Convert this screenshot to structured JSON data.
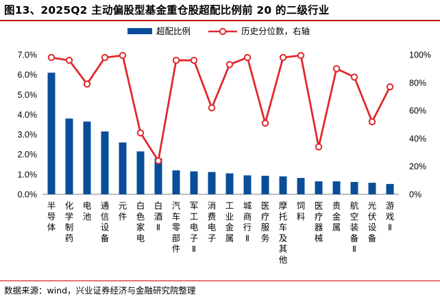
{
  "title": "图13、2025Q2 主动偏股型基金重仓股超配比例前 20 的二级行业",
  "source": "数据来源：wind，兴业证券经济与金融研究院整理",
  "colors": {
    "bar": "#0a4e9a",
    "line": "#e0282b",
    "axis": "#7f7f7f",
    "rule": "#c00000"
  },
  "chart_data": {
    "type": "bar",
    "title": "图13、2025Q2 主动偏股型基金重仓股超配比例前 20 的二级行业",
    "legend_position": "top",
    "grid": false,
    "categories": [
      "半导体",
      "化学制药",
      "电池",
      "通信设备",
      "元件",
      "白色家电",
      "白酒Ⅱ",
      "汽车零部件",
      "军工电子Ⅱ",
      "消费电子",
      "工业金属",
      "城商行Ⅱ",
      "医疗服务",
      "摩托车及其他",
      "饲料",
      "医疗器械",
      "贵金属",
      "航空装备Ⅱ",
      "光伏设备",
      "游戏Ⅱ"
    ],
    "series": [
      {
        "name": "超配比例",
        "type": "bar",
        "axis": "left",
        "values": [
          6.1,
          3.8,
          3.65,
          3.15,
          2.6,
          2.15,
          1.8,
          1.2,
          1.15,
          1.12,
          1.05,
          0.95,
          0.93,
          0.9,
          0.82,
          0.65,
          0.65,
          0.62,
          0.58,
          0.52
        ]
      },
      {
        "name": "历史分位数，右轴",
        "type": "line",
        "axis": "right",
        "values": [
          98,
          96,
          79,
          98,
          99.5,
          44,
          24,
          96,
          96,
          62,
          93,
          98,
          51,
          98,
          99.5,
          34,
          90,
          84,
          52,
          77
        ]
      }
    ],
    "y_left": {
      "min": 0,
      "max": 7,
      "step": 1,
      "ticks": [
        "0.0%",
        "1.0%",
        "2.0%",
        "3.0%",
        "4.0%",
        "5.0%",
        "6.0%",
        "7.0%"
      ]
    },
    "y_right": {
      "min": 0,
      "max": 100,
      "step": 20,
      "ticks": [
        "0%",
        "20%",
        "40%",
        "60%",
        "80%",
        "100%"
      ]
    }
  }
}
